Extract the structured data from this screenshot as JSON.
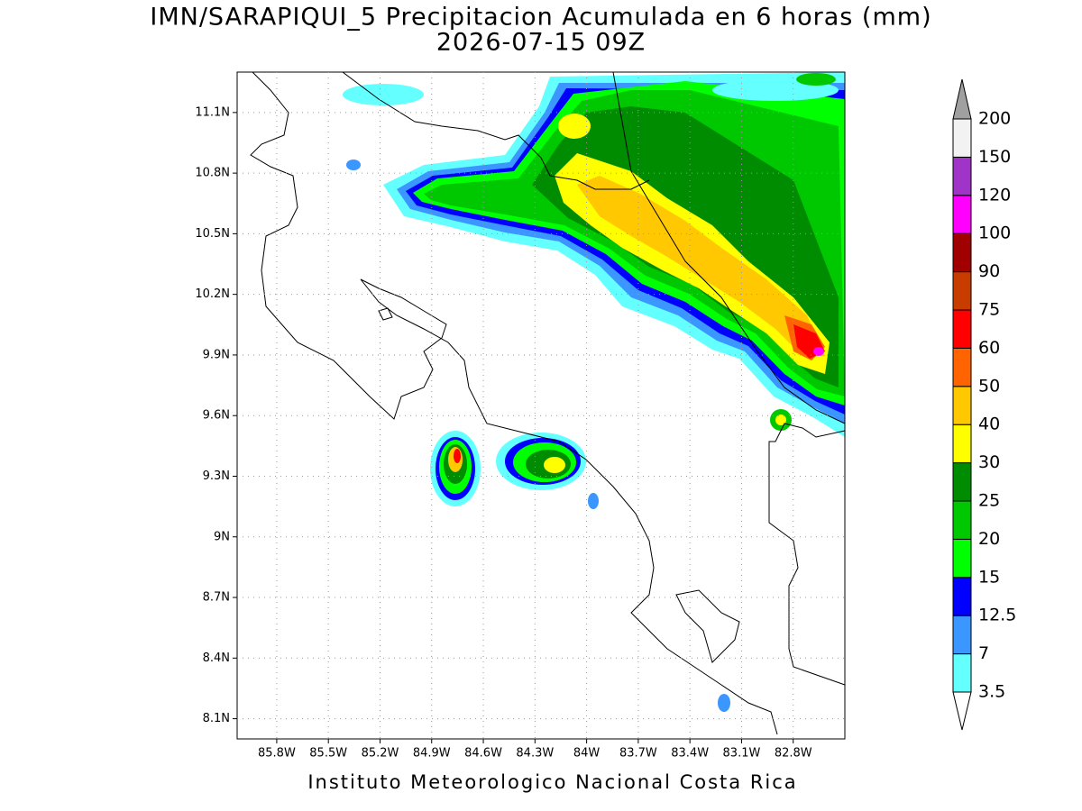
{
  "map": {
    "title": "IMN/SARAPIQUI_5 Precipitacion Acumulada en 6 horas (mm)",
    "subtitle": "2026-07-15 09Z",
    "footer": "Instituto Meteorologico Nacional Costa Rica",
    "xlim": [
      -86.03,
      -82.5
    ],
    "ylim": [
      8.0,
      11.3
    ],
    "xticks": [
      {
        "value": -85.8,
        "label": "85.8W"
      },
      {
        "value": -85.5,
        "label": "85.5W"
      },
      {
        "value": -85.2,
        "label": "85.2W"
      },
      {
        "value": -84.9,
        "label": "84.9W"
      },
      {
        "value": -84.6,
        "label": "84.6W"
      },
      {
        "value": -84.3,
        "label": "84.3W"
      },
      {
        "value": -84.0,
        "label": "84W"
      },
      {
        "value": -83.7,
        "label": "83.7W"
      },
      {
        "value": -83.4,
        "label": "83.4W"
      },
      {
        "value": -83.1,
        "label": "83.1W"
      },
      {
        "value": -82.8,
        "label": "82.8W"
      }
    ],
    "yticks": [
      {
        "value": 8.1,
        "label": "8.1N"
      },
      {
        "value": 8.4,
        "label": "8.4N"
      },
      {
        "value": 8.7,
        "label": "8.7N"
      },
      {
        "value": 9.0,
        "label": "9N"
      },
      {
        "value": 9.3,
        "label": "9.3N"
      },
      {
        "value": 9.6,
        "label": "9.6N"
      },
      {
        "value": 9.9,
        "label": "9.9N"
      },
      {
        "value": 10.2,
        "label": "10.2N"
      },
      {
        "value": 10.5,
        "label": "10.5N"
      },
      {
        "value": 10.8,
        "label": "10.8N"
      },
      {
        "value": 11.1,
        "label": "11.1N"
      }
    ],
    "grid": true
  },
  "colorbar": {
    "levels": [
      3.5,
      7,
      12.5,
      15,
      20,
      25,
      30,
      40,
      50,
      60,
      75,
      90,
      100,
      120,
      150,
      200
    ],
    "colors": [
      "#64ffff",
      "#3c96ff",
      "#0000ff",
      "#00ff00",
      "#00c800",
      "#008c00",
      "#ffff00",
      "#ffc800",
      "#ff6400",
      "#ff0000",
      "#c83c00",
      "#a00000",
      "#ff00ff",
      "#a033c8",
      "#f2f2f2"
    ],
    "over_color": "#a0a0a0",
    "under_color": "#ffffff"
  }
}
